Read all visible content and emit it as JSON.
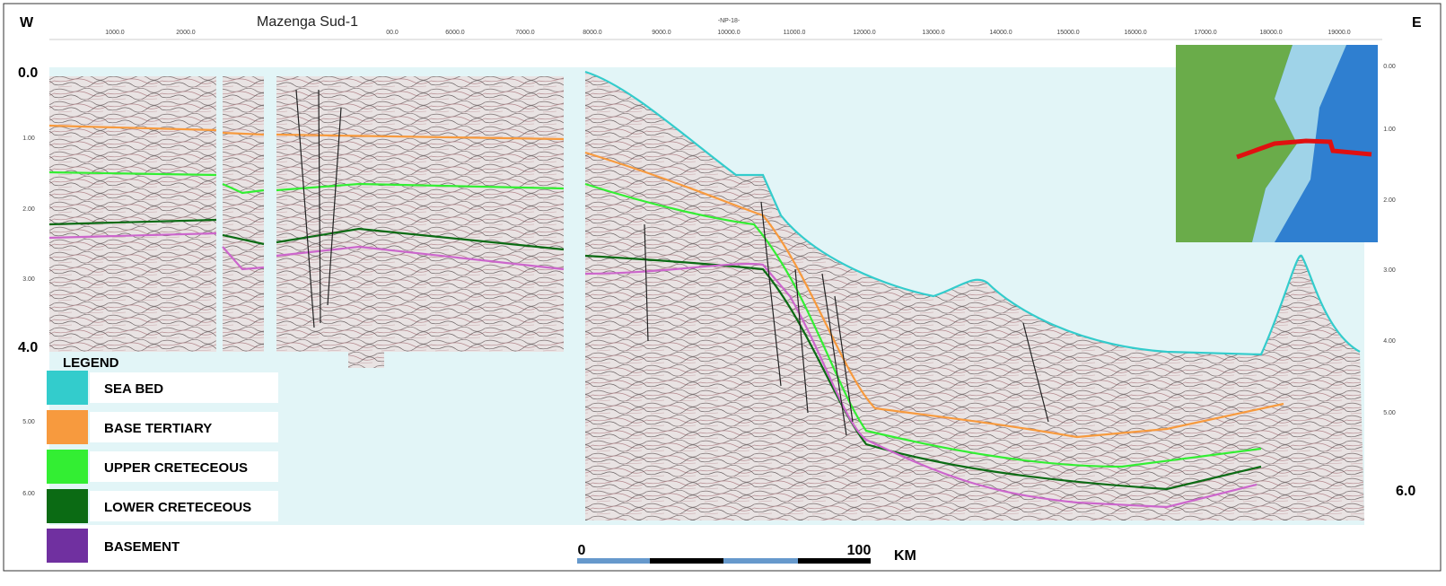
{
  "header": {
    "west": "W",
    "east": "E",
    "well": "Mazenga Sud-1",
    "line_id": "-NP-18-"
  },
  "top_axis": {
    "labels": [
      "1000.0",
      "2000.0",
      "00.0",
      "6000.0",
      "7000.0",
      "8000.0",
      "9000.0",
      "10000.0",
      "11000.0",
      "12000.0",
      "13000.0",
      "14000.0",
      "15000.0",
      "16000.0",
      "17000.0",
      "18000.0",
      "19000.0"
    ]
  },
  "left_axis": {
    "labels": [
      "0.0",
      "1.00",
      "2.00",
      "3.00",
      "4.0",
      "5.00",
      "6.00"
    ]
  },
  "right_axis": {
    "labels": [
      "0.00",
      "1.00",
      "2.00",
      "3.00",
      "4.00",
      "5.00",
      "6.0"
    ]
  },
  "legend": {
    "title": "LEGEND",
    "items": [
      {
        "label": "SEA BED",
        "color": "#33cccc"
      },
      {
        "label": "BASE TERTIARY",
        "color": "#f79a3e"
      },
      {
        "label": "UPPER CRETECEOUS",
        "color": "#33ee33"
      },
      {
        "label": "LOWER CRETECEOUS",
        "color": "#0b6b14"
      },
      {
        "label": "BASEMENT",
        "color": "#7030a0"
      }
    ]
  },
  "scale_bar": {
    "start": "0",
    "end": "100",
    "unit": "KM"
  }
}
